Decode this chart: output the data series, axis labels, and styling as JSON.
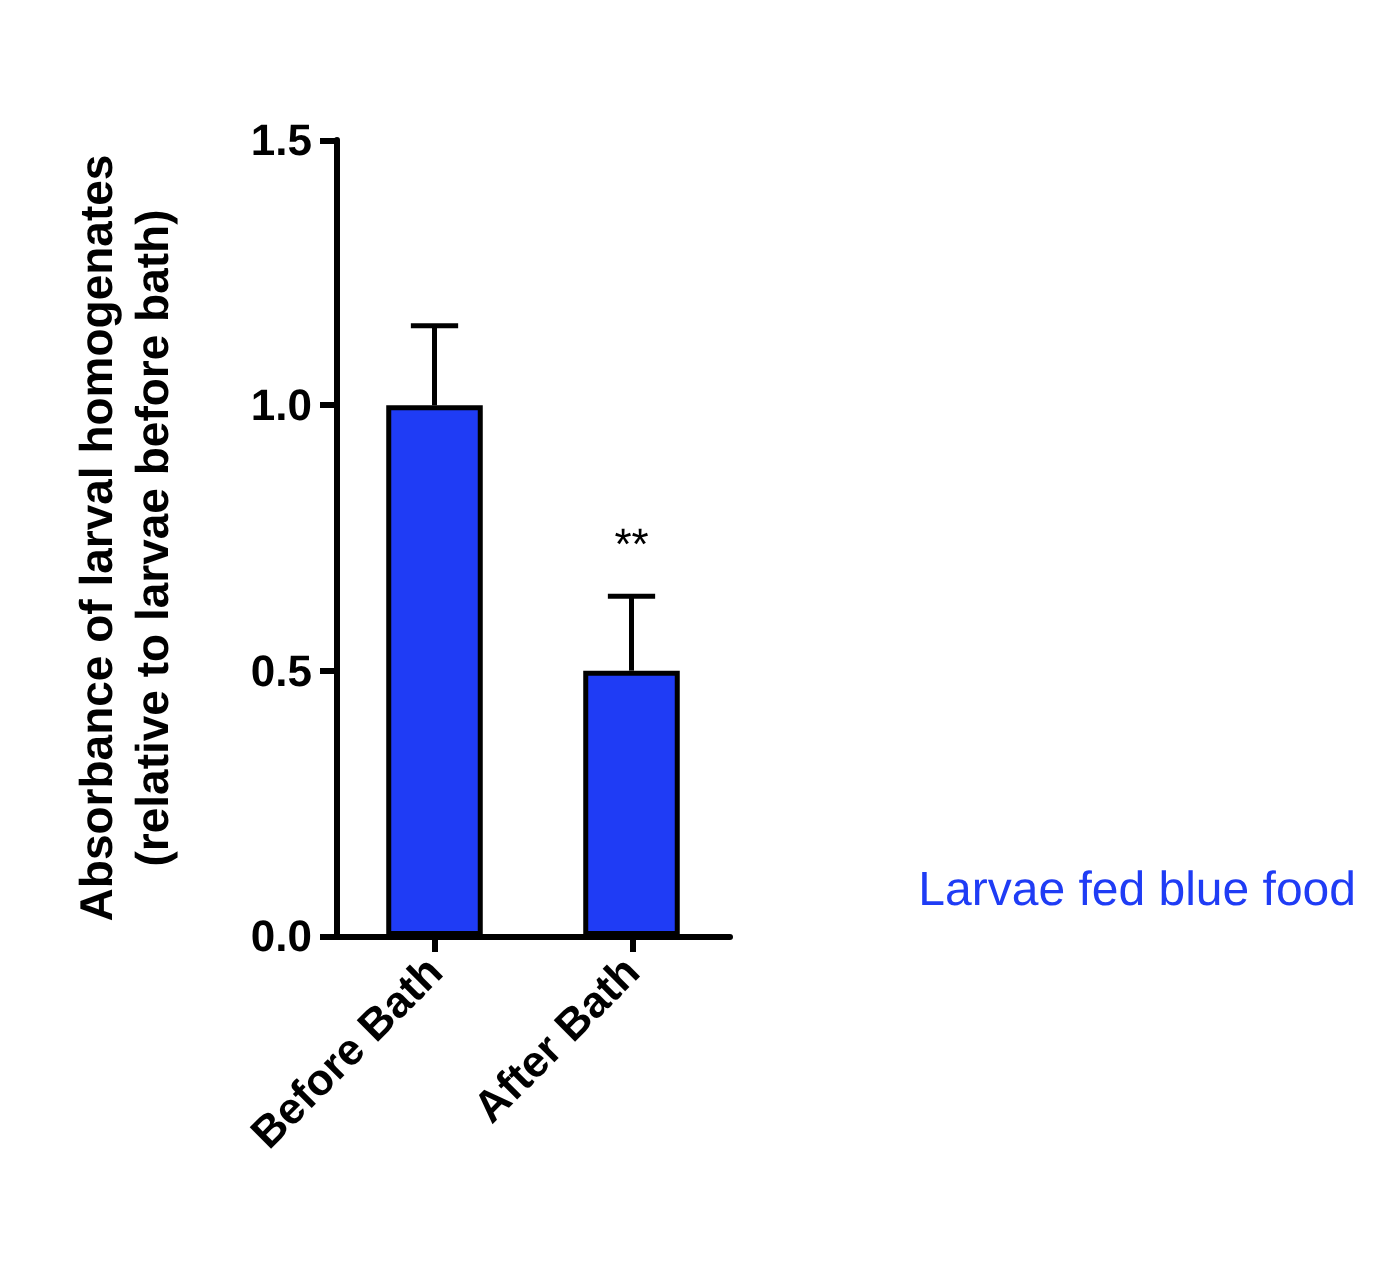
{
  "chart_data": {
    "type": "bar",
    "ylabel": "Absorbance of larval homogenates\n(relative to larvae before bath)",
    "categories": [
      "Before Bath",
      "After Bath"
    ],
    "series": [
      {
        "name": "Larvae fed blue food",
        "color": "#1f3cf5",
        "values": [
          1.0,
          0.5
        ],
        "errors": [
          [
            1.0,
            1.15
          ],
          [
            0.5,
            0.64
          ]
        ]
      }
    ],
    "ylim": [
      0,
      1.5
    ],
    "yticks": [
      {
        "value": 0,
        "label": "0.0"
      },
      {
        "value": 0.5,
        "label": "0.5"
      },
      {
        "value": 1,
        "label": "1.0"
      },
      {
        "value": 1.5,
        "label": "1.5"
      }
    ],
    "annotations": [
      {
        "text": "**",
        "x": "After Bath",
        "y": 0.64
      }
    ],
    "grid": false,
    "legend": "right"
  }
}
